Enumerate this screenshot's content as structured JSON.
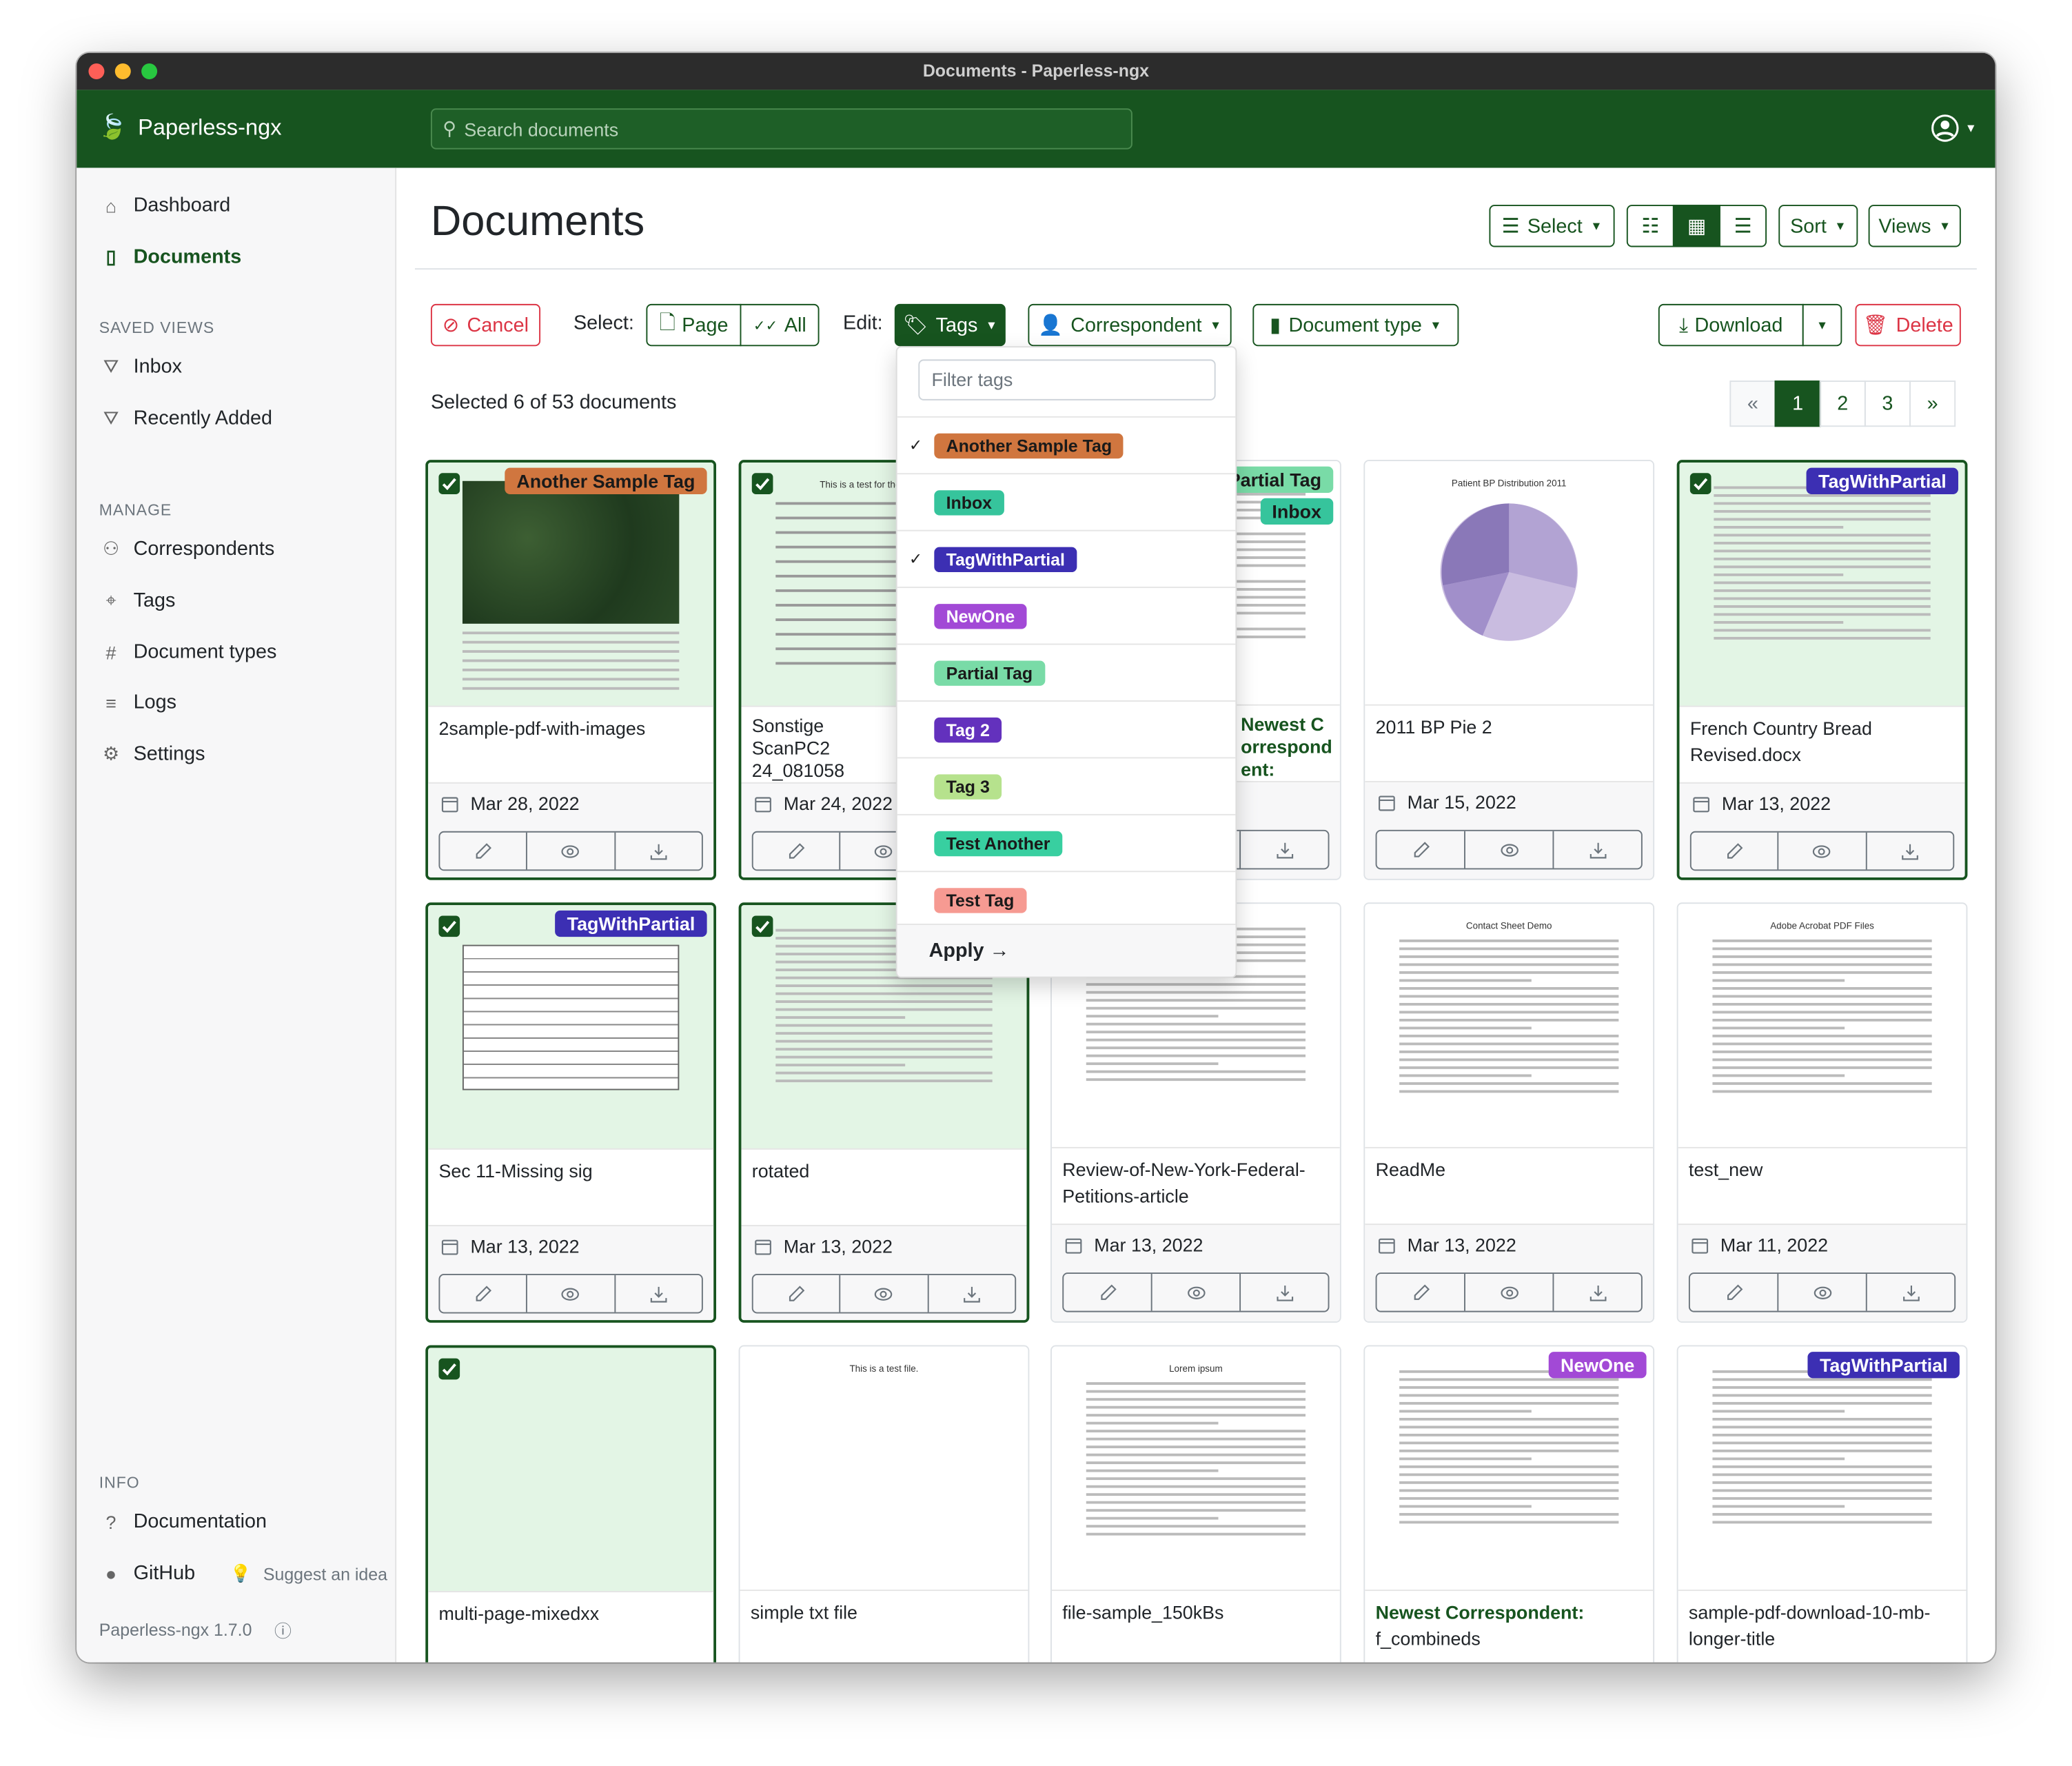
{
  "window": {
    "title": "Documents - Paperless-ngx"
  },
  "navbar": {
    "brand": "Paperless-ngx",
    "search_placeholder": "Search documents",
    "user_icon": "user-circle-icon"
  },
  "sidebar": {
    "items": [
      {
        "label": "Dashboard",
        "icon": "house-icon"
      },
      {
        "label": "Documents",
        "icon": "file-icon",
        "active": true
      }
    ],
    "saved_views_heading": "SAVED VIEWS",
    "saved_views": [
      {
        "label": "Inbox"
      },
      {
        "label": "Recently Added"
      }
    ],
    "manage_heading": "MANAGE",
    "manage": [
      {
        "label": "Correspondents"
      },
      {
        "label": "Tags"
      },
      {
        "label": "Document types"
      },
      {
        "label": "Logs"
      },
      {
        "label": "Settings"
      }
    ],
    "info_heading": "INFO",
    "info": [
      {
        "label": "Documentation"
      },
      {
        "label": "GitHub"
      }
    ],
    "suggest": "Suggest an idea",
    "version": "Paperless-ngx 1.7.0"
  },
  "header": {
    "title": "Documents",
    "select": "Select",
    "sort": "Sort",
    "views": "Views",
    "view_mode": "small-cards"
  },
  "bulk": {
    "cancel": "Cancel",
    "select_label": "Select:",
    "page": "Page",
    "all": "All",
    "edit_label": "Edit:",
    "tags": "Tags",
    "correspondent": "Correspondent",
    "document_type": "Document type",
    "download": "Download",
    "delete": "Delete",
    "status": "Selected 6 of 53 documents"
  },
  "pagination": {
    "prev": "«",
    "pages": [
      "1",
      "2",
      "3"
    ],
    "current": "1",
    "next": "»"
  },
  "tag_dropdown": {
    "filter_placeholder": "Filter tags",
    "apply": "Apply",
    "items": [
      {
        "label": "Another Sample Tag",
        "checked": true,
        "bg": "#d0763f",
        "fg": "#1a1a1a"
      },
      {
        "label": "Inbox",
        "checked": false,
        "bg": "#36c49c",
        "fg": "#1a1a1a"
      },
      {
        "label": "TagWithPartial",
        "checked": true,
        "bg": "#3c2fb3",
        "fg": "#ffffff"
      },
      {
        "label": "NewOne",
        "checked": false,
        "bg": "#a249d6",
        "fg": "#ffffff"
      },
      {
        "label": "Partial Tag",
        "checked": false,
        "bg": "#79dba7",
        "fg": "#1a1a1a"
      },
      {
        "label": "Tag 2",
        "checked": false,
        "bg": "#6331bd",
        "fg": "#ffffff"
      },
      {
        "label": "Tag 3",
        "checked": false,
        "bg": "#b6e28d",
        "fg": "#1a1a1a"
      },
      {
        "label": "Test Another",
        "checked": false,
        "bg": "#38cfa0",
        "fg": "#1a1a1a"
      },
      {
        "label": "Test Tag",
        "checked": false,
        "bg": "#f69a92",
        "fg": "#1a1a1a"
      }
    ]
  },
  "documents": [
    {
      "title": "2samplе-pdf-with-images",
      "date": "Mar 28, 2022",
      "selected": true,
      "tags": [
        "Another Sample Tag"
      ],
      "preview": "map"
    },
    {
      "title": "Sonstige ScanPC2 24_081058",
      "date": "Mar 24, 2022",
      "selected": true,
      "tags": [],
      "preview": "lines",
      "preview_text": "This is a test for the double spa"
    },
    {
      "title": "Newest Correspondent:",
      "correspondent": true,
      "date": "",
      "selected": false,
      "tags": [
        "Partial Tag",
        "Inbox"
      ],
      "preview": "text"
    },
    {
      "title": "2011 BP Pie 2",
      "date": "Mar 15, 2022",
      "selected": false,
      "tags": [],
      "preview": "pie",
      "preview_text": "Patient BP Distribution 2011"
    },
    {
      "title": "French Country Bread Revised.docx",
      "date": "Mar 13, 2022",
      "selected": true,
      "tags": [
        "TagWithPartial"
      ],
      "preview": "text"
    },
    {
      "title": "Sec 11-Missing sig",
      "date": "Mar 13, 2022",
      "selected": true,
      "tags": [
        "TagWithPartial"
      ],
      "preview": "table"
    },
    {
      "title": "rotated",
      "date": "Mar 13, 2022",
      "selected": true,
      "tags": [],
      "preview": "text"
    },
    {
      "title": "Review-of-New-York-Federal-Petitions-article",
      "date": "Mar 13, 2022",
      "selected": false,
      "tags": [],
      "preview": "text"
    },
    {
      "title": "ReadMe",
      "date": "Mar 13, 2022",
      "selected": false,
      "tags": [],
      "preview": "text",
      "preview_text": "Contact Sheet Demo"
    },
    {
      "title": "test_new",
      "date": "Mar 11, 2022",
      "selected": false,
      "tags": [],
      "preview": "text",
      "preview_text": "Adobe Acrobat PDF Files"
    },
    {
      "title": "multi-page-mixedxx",
      "date": "",
      "selected": true,
      "tags": [],
      "preview": "blank"
    },
    {
      "title": "simple txt file",
      "date": "",
      "selected": false,
      "tags": [],
      "preview": "blank",
      "preview_text": "This is a test file."
    },
    {
      "title": "file-sample_150kBs",
      "date": "",
      "selected": false,
      "tags": [],
      "preview": "text",
      "preview_text": "Lorem ipsum"
    },
    {
      "title": "f_combineds",
      "correspondent_label": "Newest Correspondent:",
      "date": "",
      "selected": false,
      "tags": [
        "NewOne"
      ],
      "preview": "text"
    },
    {
      "title": "sample-pdf-download-10-mb-longer-title",
      "date": "",
      "selected": false,
      "tags": [
        "TagWithPartial"
      ],
      "preview": "text"
    }
  ]
}
